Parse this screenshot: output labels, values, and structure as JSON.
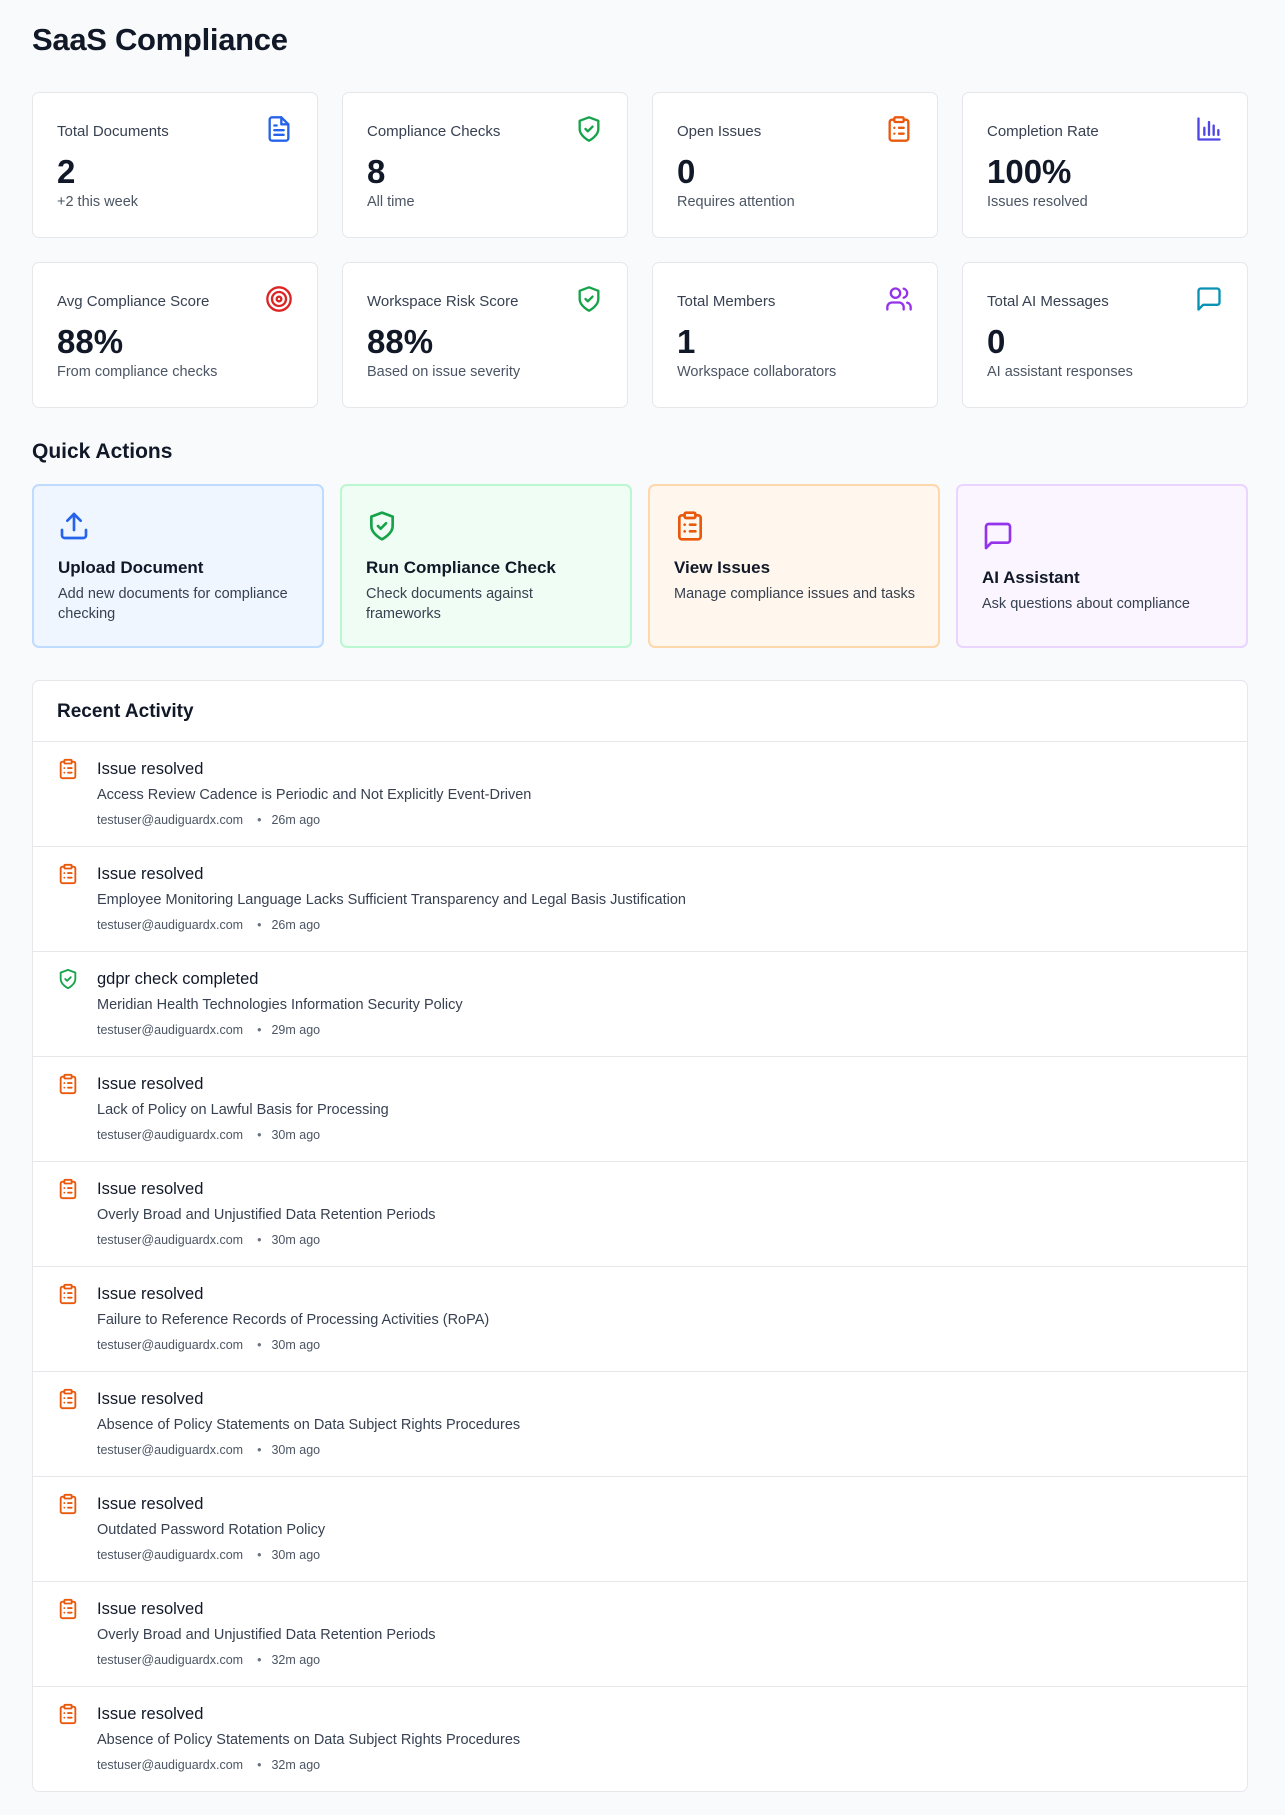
{
  "page_title": "SaaS Compliance",
  "stats": [
    {
      "label": "Total Documents",
      "value": "2",
      "sub": "+2 this week",
      "icon": "document-icon",
      "color": "#2563eb"
    },
    {
      "label": "Compliance Checks",
      "value": "8",
      "sub": "All time",
      "icon": "shield-check-icon",
      "color": "#16a34a"
    },
    {
      "label": "Open Issues",
      "value": "0",
      "sub": "Requires attention",
      "icon": "clipboard-list-icon",
      "color": "#ea580c"
    },
    {
      "label": "Completion Rate",
      "value": "100%",
      "sub": "Issues resolved",
      "icon": "bar-chart-icon",
      "color": "#4f46e5"
    },
    {
      "label": "Avg Compliance Score",
      "value": "88%",
      "sub": "From compliance checks",
      "icon": "target-icon",
      "color": "#dc2626"
    },
    {
      "label": "Workspace Risk Score",
      "value": "88%",
      "sub": "Based on issue severity",
      "icon": "shield-check-icon",
      "color": "#16a34a"
    },
    {
      "label": "Total Members",
      "value": "1",
      "sub": "Workspace collaborators",
      "icon": "users-icon",
      "color": "#9333ea"
    },
    {
      "label": "Total AI Messages",
      "value": "0",
      "sub": "AI assistant responses",
      "icon": "message-square-icon",
      "color": "#0891b2"
    }
  ],
  "quick_actions": {
    "title": "Quick Actions",
    "items": [
      {
        "title": "Upload Document",
        "desc": "Add new documents for compliance checking",
        "icon": "upload-icon",
        "color": "#2563eb",
        "bg": "#eff6ff",
        "border": "#bfdbfe"
      },
      {
        "title": "Run Compliance Check",
        "desc": "Check documents against frameworks",
        "icon": "shield-check-icon",
        "color": "#16a34a",
        "bg": "#f0fdf4",
        "border": "#bbf7d0"
      },
      {
        "title": "View Issues",
        "desc": "Manage compliance issues and tasks",
        "icon": "clipboard-list-icon",
        "color": "#ea580c",
        "bg": "#fff7ed",
        "border": "#fed7aa"
      },
      {
        "title": "AI Assistant",
        "desc": "Ask questions about compliance",
        "icon": "message-square-icon",
        "color": "#9333ea",
        "bg": "#faf5ff",
        "border": "#e9d5ff"
      }
    ]
  },
  "recent_activity": {
    "title": "Recent Activity",
    "items": [
      {
        "title": "Issue resolved",
        "desc": "Access Review Cadence is Periodic and Not Explicitly Event-Driven",
        "user": "testuser@audiguardx.com",
        "time": "26m ago",
        "icon": "clipboard-list-icon",
        "color": "#ea580c"
      },
      {
        "title": "Issue resolved",
        "desc": "Employee Monitoring Language Lacks Sufficient Transparency and Legal Basis Justification",
        "user": "testuser@audiguardx.com",
        "time": "26m ago",
        "icon": "clipboard-list-icon",
        "color": "#ea580c"
      },
      {
        "title": "gdpr check completed",
        "desc": "Meridian Health Technologies Information Security Policy",
        "user": "testuser@audiguardx.com",
        "time": "29m ago",
        "icon": "shield-check-icon",
        "color": "#16a34a"
      },
      {
        "title": "Issue resolved",
        "desc": "Lack of Policy on Lawful Basis for Processing",
        "user": "testuser@audiguardx.com",
        "time": "30m ago",
        "icon": "clipboard-list-icon",
        "color": "#ea580c"
      },
      {
        "title": "Issue resolved",
        "desc": "Overly Broad and Unjustified Data Retention Periods",
        "user": "testuser@audiguardx.com",
        "time": "30m ago",
        "icon": "clipboard-list-icon",
        "color": "#ea580c"
      },
      {
        "title": "Issue resolved",
        "desc": "Failure to Reference Records of Processing Activities (RoPA)",
        "user": "testuser@audiguardx.com",
        "time": "30m ago",
        "icon": "clipboard-list-icon",
        "color": "#ea580c"
      },
      {
        "title": "Issue resolved",
        "desc": "Absence of Policy Statements on Data Subject Rights Procedures",
        "user": "testuser@audiguardx.com",
        "time": "30m ago",
        "icon": "clipboard-list-icon",
        "color": "#ea580c"
      },
      {
        "title": "Issue resolved",
        "desc": "Outdated Password Rotation Policy",
        "user": "testuser@audiguardx.com",
        "time": "30m ago",
        "icon": "clipboard-list-icon",
        "color": "#ea580c"
      },
      {
        "title": "Issue resolved",
        "desc": "Overly Broad and Unjustified Data Retention Periods",
        "user": "testuser@audiguardx.com",
        "time": "32m ago",
        "icon": "clipboard-list-icon",
        "color": "#ea580c"
      },
      {
        "title": "Issue resolved",
        "desc": "Absence of Policy Statements on Data Subject Rights Procedures",
        "user": "testuser@audiguardx.com",
        "time": "32m ago",
        "icon": "clipboard-list-icon",
        "color": "#ea580c"
      }
    ]
  }
}
